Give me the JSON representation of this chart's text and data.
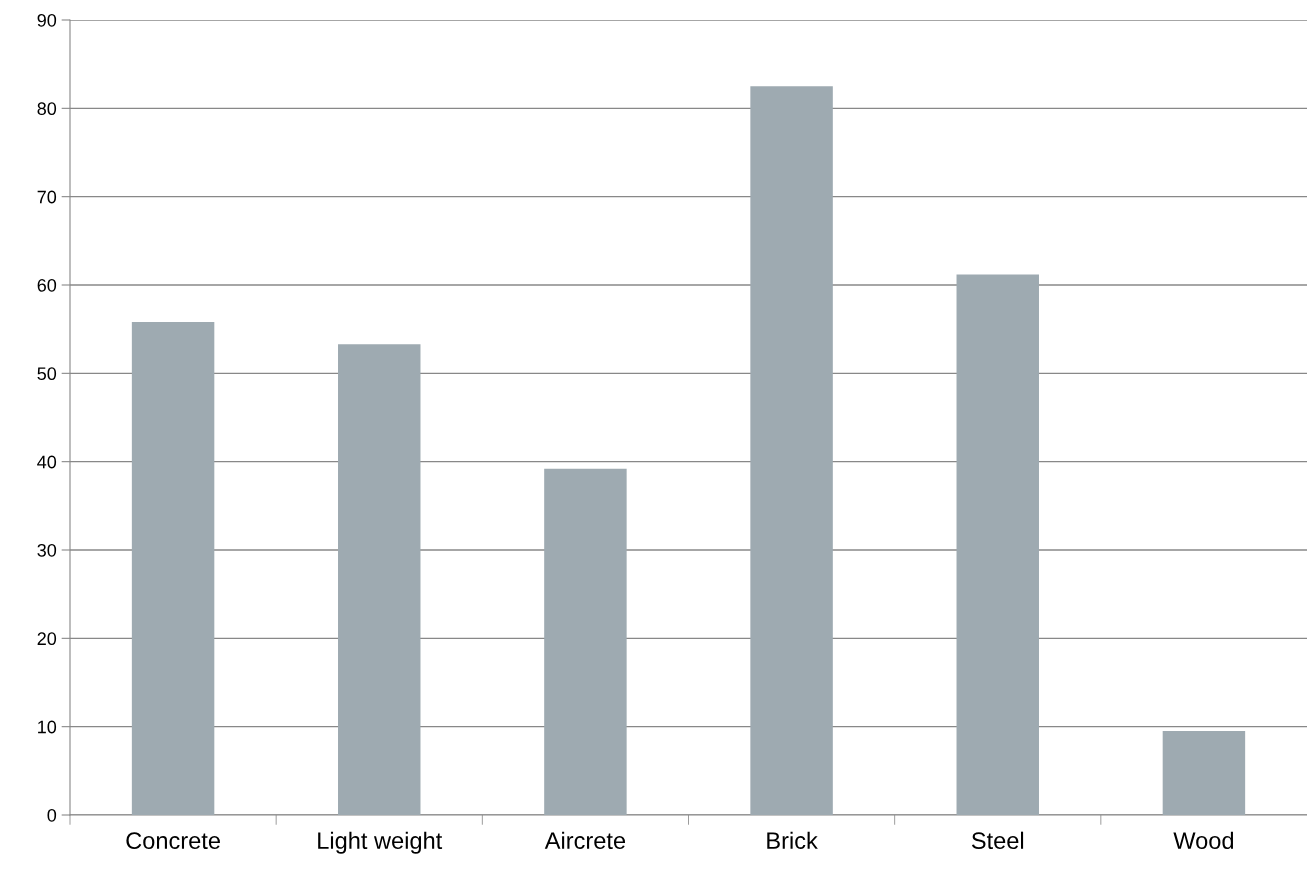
{
  "chart_data": {
    "type": "bar",
    "categories": [
      "Concrete",
      "Light weight",
      "Aircrete",
      "Brick",
      "Steel",
      "Wood"
    ],
    "values": [
      55.8,
      53.3,
      39.2,
      82.5,
      61.2,
      9.5
    ],
    "color": "#9eaab1",
    "ylim": [
      0,
      90
    ],
    "yticks": [
      0,
      10,
      20,
      30,
      40,
      50,
      60,
      70,
      80,
      90
    ],
    "grid": "y"
  }
}
